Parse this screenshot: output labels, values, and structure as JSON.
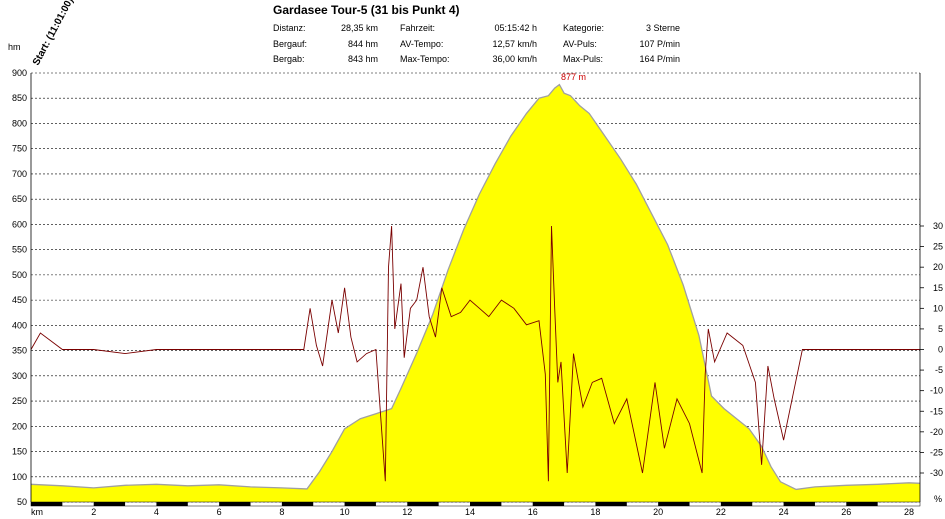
{
  "header": {
    "title": "Gardasee Tour-5 (31 bis Punkt 4)",
    "start_label": "Start: (11:01:00)",
    "stats": [
      {
        "label": "Distanz:",
        "value": "28,35 km"
      },
      {
        "label": "Bergauf:",
        "value": "844 hm"
      },
      {
        "label": "Bergab:",
        "value": "843 hm"
      },
      {
        "label": "Fahrzeit:",
        "value": "05:15:42 h"
      },
      {
        "label": "AV-Tempo:",
        "value": "12,57 km/h"
      },
      {
        "label": "Max-Tempo:",
        "value": "36,00 km/h"
      },
      {
        "label": "Kategorie:",
        "value": "3 Sterne"
      },
      {
        "label": "AV-Puls:",
        "value": "107 P/min"
      },
      {
        "label": "Max-Puls:",
        "value": "164 P/min"
      }
    ]
  },
  "chart_data": {
    "type": "area",
    "title": "Gardasee Tour-5 (31 bis Punkt 4)",
    "xlabel": "km",
    "ylabel": "hm",
    "y2label": "%",
    "xlim": [
      0,
      28.35
    ],
    "ylim": [
      50,
      900
    ],
    "y2lim": [
      -35,
      30
    ],
    "x_ticks": [
      2,
      4,
      6,
      8,
      10,
      12,
      14,
      16,
      18,
      20,
      22,
      24,
      26,
      28
    ],
    "y_ticks": [
      50,
      100,
      150,
      200,
      250,
      300,
      350,
      400,
      450,
      500,
      550,
      600,
      650,
      700,
      750,
      800,
      850,
      900
    ],
    "y2_ticks": [
      30,
      25,
      20,
      15,
      10,
      5,
      0,
      -5,
      -10,
      -15,
      -20,
      -25,
      -30
    ],
    "grid": true,
    "peak_label": "877 m",
    "colors": {
      "elevation_fill": "#ffff00",
      "elevation_line": "#a0a0a0",
      "gradient_line": "#7a0000",
      "peak_label": "#cc0000"
    },
    "series": [
      {
        "kind": "elevation",
        "x": [
          0,
          1,
          2,
          3,
          4,
          5,
          6,
          7,
          8,
          8.8,
          9.2,
          9.6,
          10,
          10.5,
          11,
          11.5,
          11.8,
          12.3,
          12.8,
          13.3,
          13.8,
          14.3,
          14.8,
          15.3,
          15.8,
          16.2,
          16.5,
          16.7,
          16.85,
          17,
          17.2,
          17.5,
          17.8,
          18.3,
          18.8,
          19.3,
          19.8,
          20.3,
          20.8,
          21.3,
          21.7,
          22.1,
          22.5,
          22.9,
          23.3,
          23.6,
          23.9,
          24.4,
          25,
          26,
          27,
          28,
          28.35
        ],
        "y": [
          85,
          82,
          78,
          83,
          85,
          82,
          84,
          80,
          78,
          76,
          110,
          150,
          195,
          215,
          225,
          235,
          275,
          345,
          420,
          510,
          590,
          660,
          720,
          775,
          820,
          850,
          855,
          870,
          877,
          860,
          855,
          835,
          820,
          775,
          730,
          680,
          620,
          560,
          480,
          380,
          260,
          235,
          215,
          195,
          160,
          120,
          90,
          75,
          80,
          83,
          85,
          88,
          87
        ]
      },
      {
        "kind": "gradient",
        "x": [
          0,
          0.3,
          1,
          2,
          3,
          4,
          5,
          6,
          7,
          8,
          8.7,
          8.9,
          9.1,
          9.3,
          9.6,
          9.8,
          10,
          10.2,
          10.4,
          10.7,
          11,
          11.3,
          11.4,
          11.5,
          11.6,
          11.8,
          11.9,
          12.1,
          12.3,
          12.5,
          12.7,
          12.9,
          13.1,
          13.4,
          13.7,
          14,
          14.3,
          14.6,
          15,
          15.4,
          15.8,
          16.2,
          16.4,
          16.5,
          16.6,
          16.7,
          16.8,
          16.9,
          17.1,
          17.3,
          17.6,
          17.9,
          18.2,
          18.6,
          19,
          19.5,
          19.9,
          20.2,
          20.6,
          21,
          21.4,
          21.5,
          21.6,
          21.8,
          22.2,
          22.7,
          23.1,
          23.3,
          23.5,
          23.7,
          24,
          24.6,
          25.5,
          26.5,
          27.5,
          28.35
        ],
        "y": [
          0,
          4,
          0,
          0,
          -1,
          0,
          0,
          0,
          0,
          0,
          0,
          10,
          1,
          -4,
          12,
          4,
          15,
          3,
          -3,
          -1,
          0,
          -32,
          20,
          30,
          5,
          16,
          -2,
          10,
          12,
          20,
          8,
          3,
          15,
          8,
          9,
          12,
          10,
          8,
          12,
          10,
          6,
          7,
          -6,
          -32,
          30,
          10,
          -8,
          -3,
          -30,
          -1,
          -14,
          -8,
          -7,
          -18,
          -12,
          -30,
          -8,
          -24,
          -12,
          -18,
          -30,
          -6,
          5,
          -3,
          4,
          1,
          -8,
          -28,
          -4,
          -12,
          -22,
          0,
          0,
          0,
          0,
          0
        ]
      }
    ]
  }
}
